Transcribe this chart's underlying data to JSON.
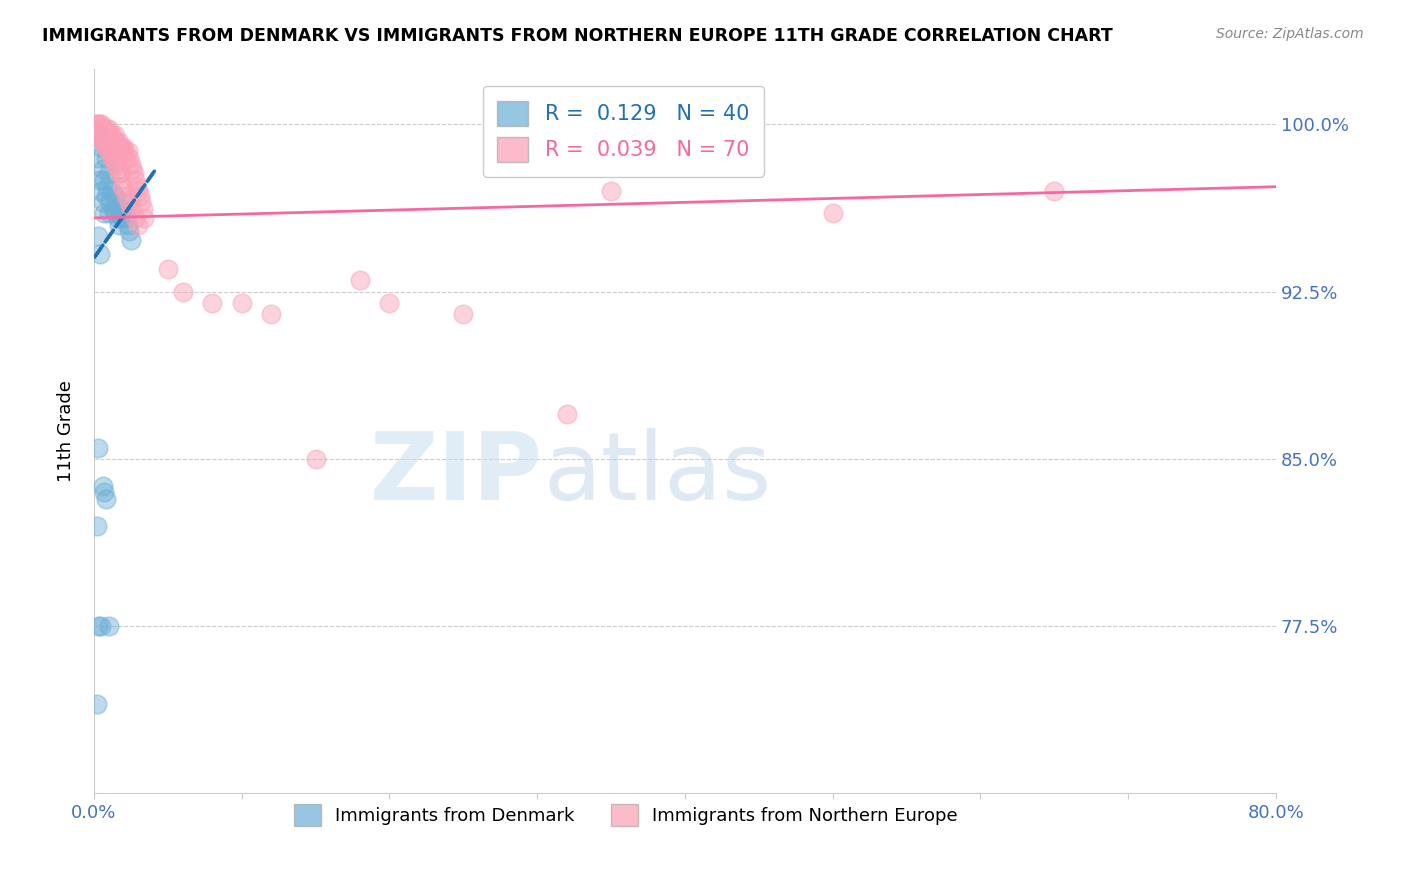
{
  "title": "IMMIGRANTS FROM DENMARK VS IMMIGRANTS FROM NORTHERN EUROPE 11TH GRADE CORRELATION CHART",
  "source": "Source: ZipAtlas.com",
  "ylabel": "11th Grade",
  "xlim": [
    0.0,
    0.8
  ],
  "ylim": [
    0.7,
    1.025
  ],
  "yticks": [
    0.775,
    0.85,
    0.925,
    1.0
  ],
  "ytick_labels": [
    "77.5%",
    "85.0%",
    "92.5%",
    "100.0%"
  ],
  "xticks": [
    0.0,
    0.1,
    0.2,
    0.3,
    0.4,
    0.5,
    0.6,
    0.7,
    0.8
  ],
  "xtick_labels": [
    "0.0%",
    "",
    "",
    "",
    "",
    "",
    "",
    "",
    "80.0%"
  ],
  "r_denmark": 0.129,
  "n_denmark": 40,
  "r_northern": 0.039,
  "n_northern": 70,
  "color_denmark": "#6baed6",
  "color_northern": "#fa9fb5",
  "color_denmark_line": "#2171b5",
  "color_northern_line": "#f768a1",
  "color_axis_labels": "#4472C4",
  "watermark_zip": "ZIP",
  "watermark_atlas": "atlas",
  "denmark_line_x0": 0.0,
  "denmark_line_y0": 0.94,
  "denmark_line_x1": 0.042,
  "denmark_line_y1": 0.98,
  "northern_line_x0": 0.0,
  "northern_line_y0": 0.958,
  "northern_line_x1": 0.8,
  "northern_line_y1": 0.972,
  "scatter_denmark_x": [
    0.002,
    0.003,
    0.004,
    0.005,
    0.005,
    0.006,
    0.006,
    0.007,
    0.007,
    0.008,
    0.008,
    0.009,
    0.01,
    0.01,
    0.011,
    0.012,
    0.013,
    0.014,
    0.015,
    0.016,
    0.017,
    0.018,
    0.019,
    0.02,
    0.021,
    0.022,
    0.023,
    0.024,
    0.025,
    0.003,
    0.004,
    0.006,
    0.008,
    0.01,
    0.002,
    0.003,
    0.005,
    0.007,
    0.003,
    0.002
  ],
  "scatter_denmark_y": [
    0.995,
    0.985,
    0.975,
    0.99,
    0.97,
    0.98,
    0.965,
    0.975,
    0.96,
    0.985,
    0.968,
    0.972,
    0.978,
    0.96,
    0.965,
    0.97,
    0.962,
    0.968,
    0.96,
    0.958,
    0.955,
    0.962,
    0.958,
    0.965,
    0.96,
    0.958,
    0.955,
    0.952,
    0.948,
    0.95,
    0.942,
    0.838,
    0.832,
    0.775,
    0.82,
    0.855,
    0.775,
    0.835,
    0.775,
    0.74
  ],
  "scatter_northern_x": [
    0.002,
    0.003,
    0.004,
    0.005,
    0.006,
    0.007,
    0.008,
    0.009,
    0.01,
    0.011,
    0.012,
    0.013,
    0.014,
    0.015,
    0.016,
    0.017,
    0.018,
    0.019,
    0.02,
    0.021,
    0.022,
    0.023,
    0.024,
    0.025,
    0.026,
    0.027,
    0.028,
    0.029,
    0.03,
    0.031,
    0.032,
    0.033,
    0.034,
    0.005,
    0.008,
    0.01,
    0.012,
    0.015,
    0.018,
    0.02,
    0.003,
    0.004,
    0.006,
    0.007,
    0.009,
    0.011,
    0.013,
    0.016,
    0.002,
    0.014,
    0.017,
    0.019,
    0.022,
    0.024,
    0.025,
    0.028,
    0.03,
    0.05,
    0.06,
    0.08,
    0.1,
    0.12,
    0.15,
    0.18,
    0.2,
    0.25,
    0.32,
    0.35,
    0.5,
    0.65
  ],
  "scatter_northern_y": [
    1.0,
    0.998,
    1.0,
    1.0,
    0.998,
    0.998,
    0.995,
    0.998,
    0.998,
    0.995,
    0.995,
    0.993,
    0.995,
    0.992,
    0.99,
    0.992,
    0.99,
    0.988,
    0.99,
    0.988,
    0.985,
    0.988,
    0.985,
    0.982,
    0.98,
    0.978,
    0.975,
    0.972,
    0.97,
    0.968,
    0.965,
    0.962,
    0.958,
    0.993,
    0.99,
    0.988,
    0.985,
    0.982,
    0.978,
    0.972,
    0.998,
    0.995,
    0.993,
    0.992,
    0.99,
    0.988,
    0.985,
    0.98,
    1.0,
    0.983,
    0.978,
    0.972,
    0.968,
    0.965,
    0.962,
    0.958,
    0.955,
    0.935,
    0.925,
    0.92,
    0.92,
    0.915,
    0.85,
    0.93,
    0.92,
    0.915,
    0.87,
    0.97,
    0.96,
    0.97
  ]
}
